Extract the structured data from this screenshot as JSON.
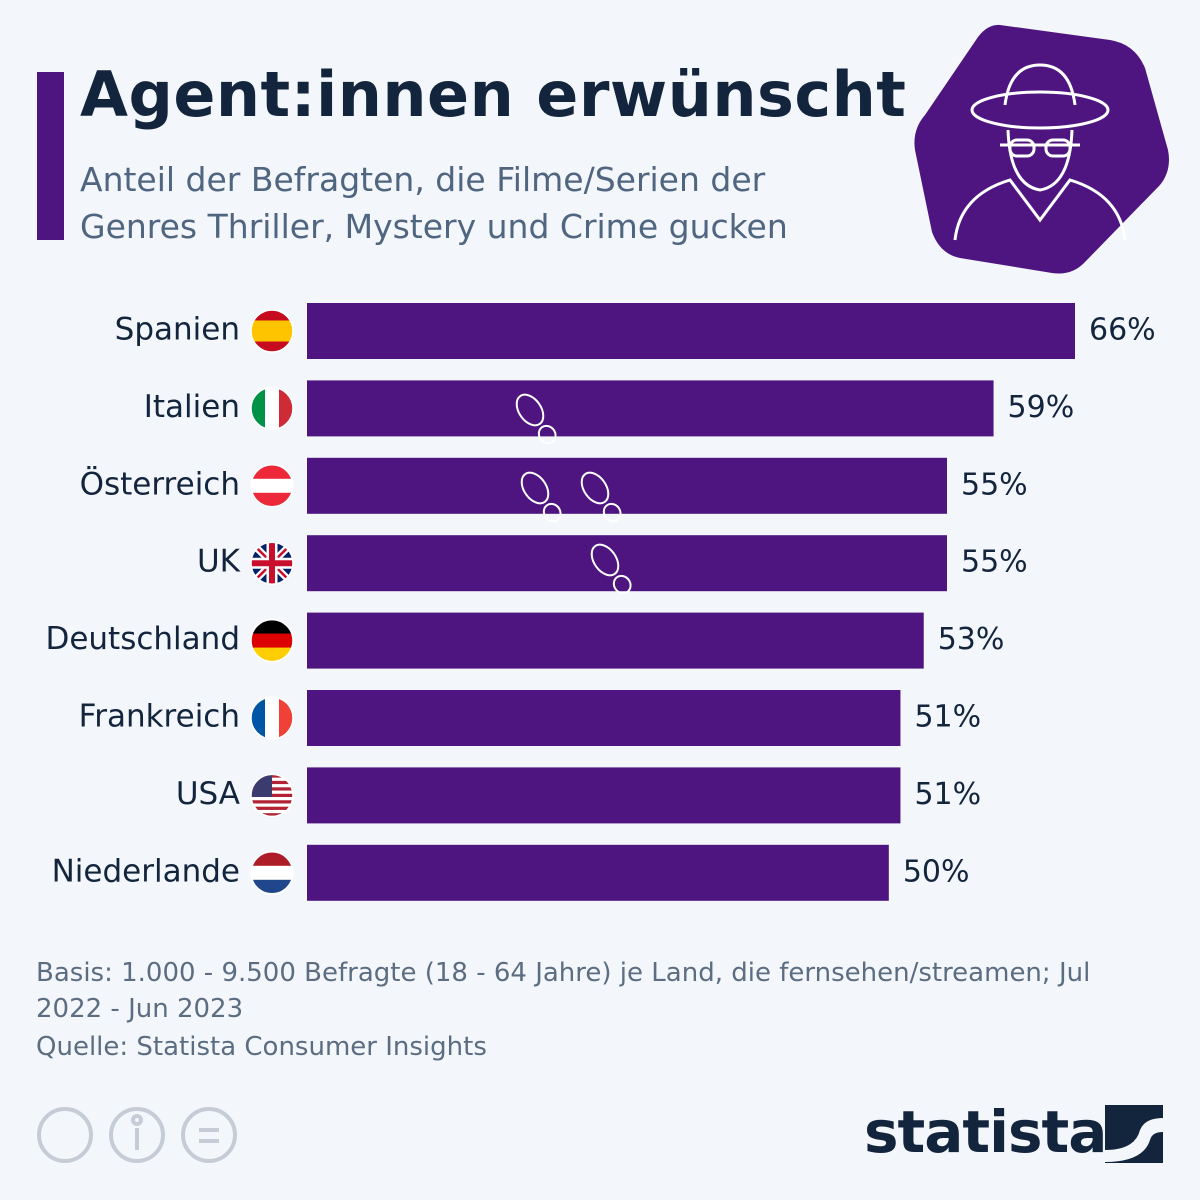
{
  "chart_data": {
    "type": "bar",
    "orientation": "horizontal",
    "title": "Agent:innen erwünscht",
    "subtitle": "Anteil der Befragten, die Filme/Serien der Genres Thriller, Mystery und Crime gucken",
    "categories": [
      "Spanien",
      "Italien",
      "Österreich",
      "UK",
      "Deutschland",
      "Frankreich",
      "USA",
      "Niederlande"
    ],
    "values": [
      66,
      59,
      55,
      55,
      53,
      51,
      51,
      50
    ],
    "value_labels": [
      "66%",
      "59%",
      "55%",
      "55%",
      "53%",
      "51%",
      "51%",
      "50%"
    ],
    "color": "#4e1580",
    "note": "Basis: 1.000 - 9.500 Befragte (18 - 64 Jahre) je Land, die fernsehen/streamen; Jul 2022 - Jun 2023",
    "source": "Quelle: Statista Consumer Insights",
    "logo": "statista"
  }
}
